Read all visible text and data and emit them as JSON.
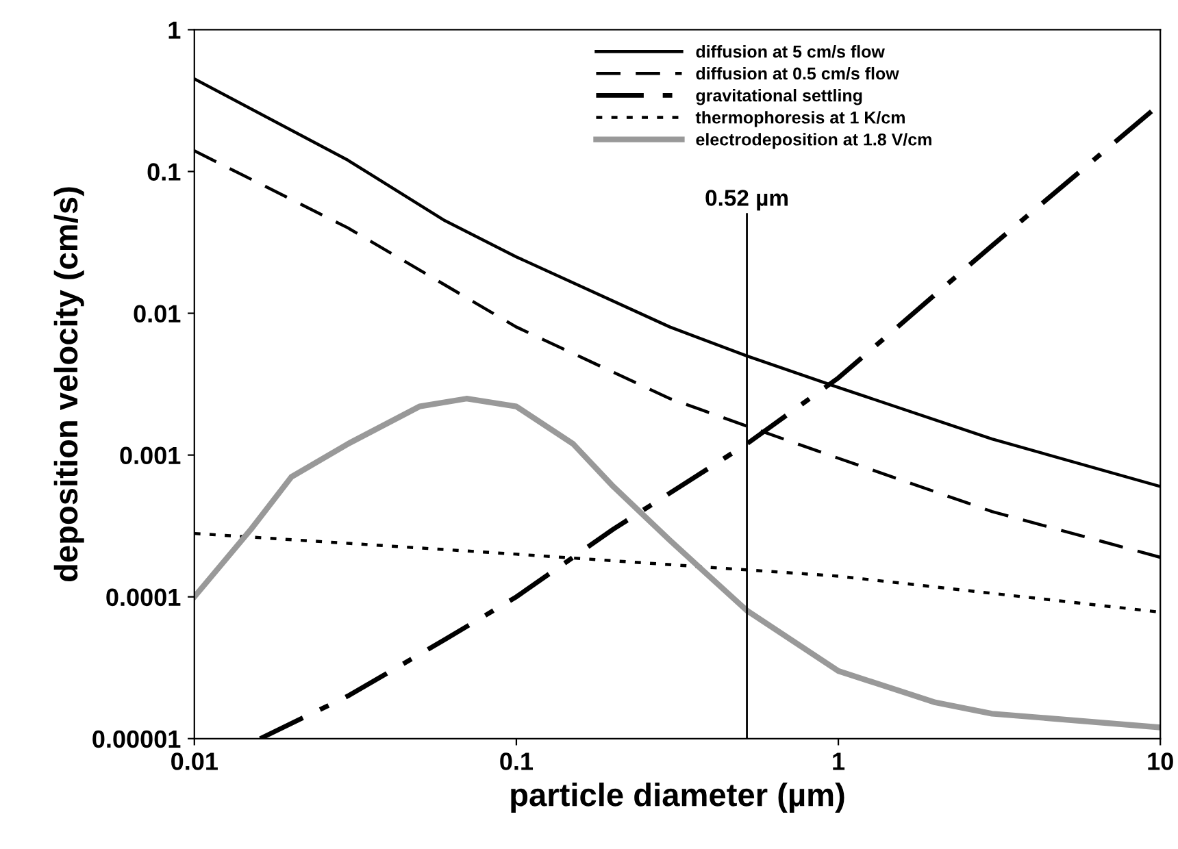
{
  "chart_data": {
    "type": "line",
    "xlabel": "particle diameter (µm)",
    "ylabel": "deposition velocity (cm/s)",
    "log": "xy",
    "grid": false,
    "legend": "top right",
    "xlim": [
      0.01,
      10
    ],
    "ylim": [
      1e-05,
      1
    ],
    "xticks": [
      0.01,
      0.1,
      1,
      10
    ],
    "yticks": [
      {
        "value": 1e-05,
        "label": "0.00001"
      },
      {
        "value": 0.0001,
        "label": "0.0001"
      },
      {
        "value": 0.001,
        "label": "0.001"
      },
      {
        "value": 0.01,
        "label": "0.01"
      },
      {
        "value": 0.1,
        "label": "0.1"
      },
      {
        "value": 1,
        "label": "1"
      }
    ],
    "series": [
      {
        "name": "diffusion at 5 cm/s flow",
        "color": "#000000",
        "line_style": "solid",
        "x": [
          0.01,
          0.03,
          0.06,
          0.1,
          0.3,
          0.52,
          1,
          3,
          10
        ],
        "values": [
          0.45,
          0.12,
          0.045,
          0.025,
          0.008,
          0.005,
          0.003,
          0.0013,
          0.0006
        ]
      },
      {
        "name": "diffusion at 0.5 cm/s flow",
        "color": "#000000",
        "line_style": "dashed",
        "x": [
          0.01,
          0.03,
          0.1,
          0.3,
          0.52,
          1,
          3,
          10
        ],
        "values": [
          0.14,
          0.04,
          0.008,
          0.0025,
          0.0016,
          0.00095,
          0.0004,
          0.00019
        ]
      },
      {
        "name": "gravitational settling",
        "color": "#000000",
        "line_style": "dashdot",
        "x": [
          0.016,
          0.03,
          0.06,
          0.1,
          0.2,
          0.52,
          1,
          3,
          10
        ],
        "values": [
          1e-05,
          2e-05,
          5e-05,
          0.0001,
          0.0003,
          0.0012,
          0.0035,
          0.03,
          0.3
        ]
      },
      {
        "name": "thermophoresis at 1 K/cm",
        "color": "#000000",
        "line_style": "dotted",
        "x": [
          0.01,
          0.1,
          1,
          10
        ],
        "values": [
          0.00028,
          0.0002,
          0.00014,
          7.8e-05
        ]
      },
      {
        "name": "electrodeposition at 1.8 V/cm",
        "color": "#999999",
        "line_style": "solid",
        "x": [
          0.01,
          0.015,
          0.02,
          0.03,
          0.05,
          0.07,
          0.1,
          0.15,
          0.2,
          0.3,
          0.52,
          1,
          2,
          3,
          10
        ],
        "values": [
          0.0001,
          0.0003,
          0.0007,
          0.0012,
          0.0022,
          0.0025,
          0.0022,
          0.0012,
          0.0006,
          0.00025,
          8e-05,
          3e-05,
          1.8e-05,
          1.5e-05,
          1.2e-05
        ]
      }
    ],
    "ref_lines": [
      {
        "axis": "x",
        "value": 0.52,
        "label": "0.52 µm",
        "color": "#000000"
      }
    ]
  }
}
